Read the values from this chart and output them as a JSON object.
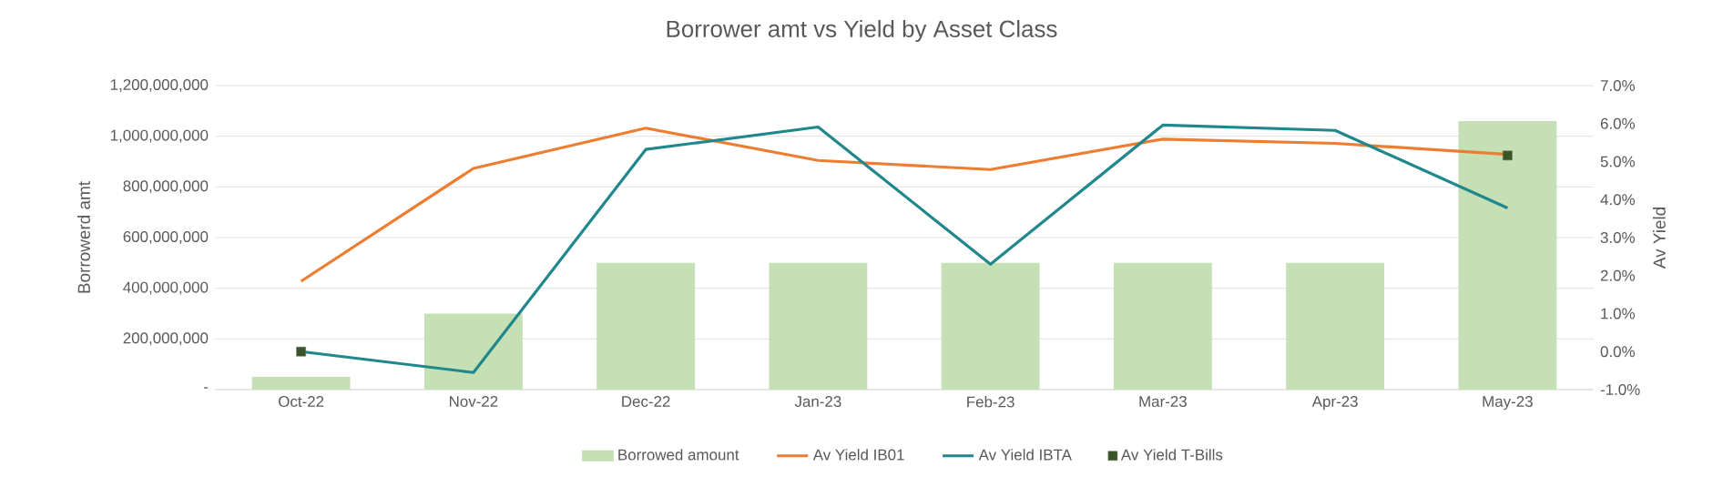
{
  "chart_data": {
    "type": "bar",
    "title": "Borrower amt vs Yield by Asset Class",
    "ylabel": "Borrowerd amt",
    "y2label": "Av Yield",
    "categories": [
      "Oct-22",
      "Nov-22",
      "Dec-22",
      "Jan-23",
      "Feb-23",
      "Mar-23",
      "Apr-23",
      "May-23"
    ],
    "series": [
      {
        "name": "Borrowed amount",
        "color": "#c5e0b4",
        "values": [
          50000000,
          300000000,
          500000000,
          500000000,
          500000000,
          500000000,
          500000000,
          1060000000
        ]
      },
      {
        "name": "Av Yield IB01",
        "type": "line",
        "axis": "y2",
        "color": "#ed7d31",
        "values": [
          1.85,
          4.82,
          5.88,
          5.03,
          4.79,
          5.59,
          5.48,
          5.19
        ]
      },
      {
        "name": "Av Yield IBTA",
        "type": "line",
        "axis": "y2",
        "color": "#20878c",
        "values": [
          0.0,
          -0.55,
          5.32,
          5.91,
          2.3,
          5.96,
          5.82,
          3.78
        ]
      },
      {
        "name": "Av Yield T-Bills",
        "type": "scatter",
        "axis": "y2",
        "marker": "square",
        "color": "#375623",
        "values": [
          0.0,
          null,
          null,
          null,
          null,
          null,
          null,
          5.16
        ]
      }
    ],
    "ylim": [
      0,
      1200000000
    ],
    "yticks": [
      {
        "value": 0,
        "label": "-"
      },
      {
        "value": 200000000,
        "label": "200,000,000"
      },
      {
        "value": 400000000,
        "label": "400,000,000"
      },
      {
        "value": 600000000,
        "label": "600,000,000"
      },
      {
        "value": 800000000,
        "label": "800,000,000"
      },
      {
        "value": 1000000000,
        "label": "1,000,000,000"
      },
      {
        "value": 1200000000,
        "label": "1,200,000,000"
      }
    ],
    "y2lim": [
      -1,
      7
    ],
    "y2ticks": [
      {
        "value": -1,
        "label": "-1.0%"
      },
      {
        "value": 0,
        "label": "0.0%"
      },
      {
        "value": 1,
        "label": "1.0%"
      },
      {
        "value": 2,
        "label": "2.0%"
      },
      {
        "value": 3,
        "label": "3.0%"
      },
      {
        "value": 4,
        "label": "4.0%"
      },
      {
        "value": 5,
        "label": "5.0%"
      },
      {
        "value": 6,
        "label": "6.0%"
      },
      {
        "value": 7,
        "label": "7.0%"
      }
    ],
    "grid": "y",
    "legend": "bottom"
  }
}
